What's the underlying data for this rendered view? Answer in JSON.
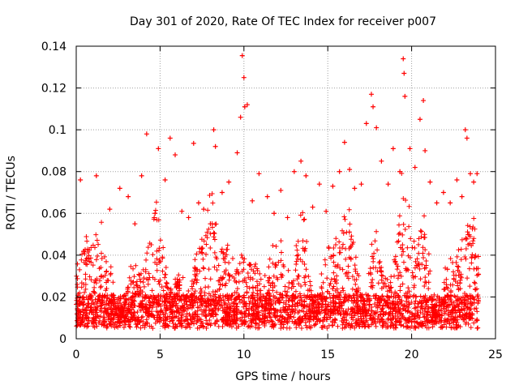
{
  "chart_data": {
    "type": "scatter",
    "title": "Day 301 of 2020, Rate Of TEC Index for receiver p007",
    "xlabel": "GPS time / hours",
    "ylabel": "ROTI / TECUs",
    "xlim": [
      0,
      25
    ],
    "ylim": [
      0,
      0.14
    ],
    "xticks": [
      "0",
      "5",
      "10",
      "15",
      "20",
      "25"
    ],
    "yticks": [
      "0",
      "0.02",
      "0.04",
      "0.06",
      "0.08",
      "0.1",
      "0.12",
      "0.14"
    ],
    "grid": true,
    "marker": "+",
    "color": "#ff0000",
    "series": [
      {
        "name": "ROTI",
        "x": [
          0.1,
          0.25,
          0.4,
          0.9,
          1.2,
          1.5,
          2.0,
          2.6,
          3.1,
          3.5,
          3.9,
          4.2,
          4.7,
          4.9,
          5.3,
          5.6,
          5.9,
          6.3,
          6.7,
          7.0,
          7.3,
          7.6,
          8.0,
          8.2,
          8.3,
          8.7,
          9.1,
          9.6,
          9.8,
          9.9,
          10.0,
          10.05,
          10.2,
          10.5,
          10.9,
          11.4,
          11.8,
          12.2,
          12.6,
          13.0,
          13.4,
          13.7,
          14.1,
          14.5,
          14.9,
          15.3,
          15.7,
          16.0,
          16.3,
          16.6,
          17.0,
          17.3,
          17.6,
          17.7,
          17.9,
          18.2,
          18.6,
          18.9,
          19.3,
          19.5,
          19.55,
          19.6,
          19.9,
          20.2,
          20.5,
          20.7,
          20.8,
          21.1,
          21.5,
          21.9,
          22.3,
          22.7,
          23.0,
          23.2,
          23.3,
          23.5,
          23.7,
          23.9
        ],
        "y": [
          0.01,
          0.076,
          0.02,
          0.015,
          0.078,
          0.03,
          0.062,
          0.072,
          0.068,
          0.055,
          0.078,
          0.098,
          0.06,
          0.091,
          0.076,
          0.096,
          0.088,
          0.061,
          0.058,
          0.0935,
          0.065,
          0.062,
          0.055,
          0.1,
          0.092,
          0.07,
          0.075,
          0.089,
          0.106,
          0.1355,
          0.125,
          0.111,
          0.112,
          0.066,
          0.079,
          0.068,
          0.06,
          0.071,
          0.058,
          0.08,
          0.085,
          0.078,
          0.063,
          0.074,
          0.061,
          0.073,
          0.08,
          0.094,
          0.081,
          0.072,
          0.074,
          0.103,
          0.117,
          0.111,
          0.101,
          0.085,
          0.074,
          0.091,
          0.08,
          0.134,
          0.127,
          0.116,
          0.091,
          0.082,
          0.105,
          0.114,
          0.09,
          0.075,
          0.065,
          0.07,
          0.065,
          0.076,
          0.068,
          0.1,
          0.096,
          0.079,
          0.075,
          0.079
        ]
      }
    ]
  }
}
